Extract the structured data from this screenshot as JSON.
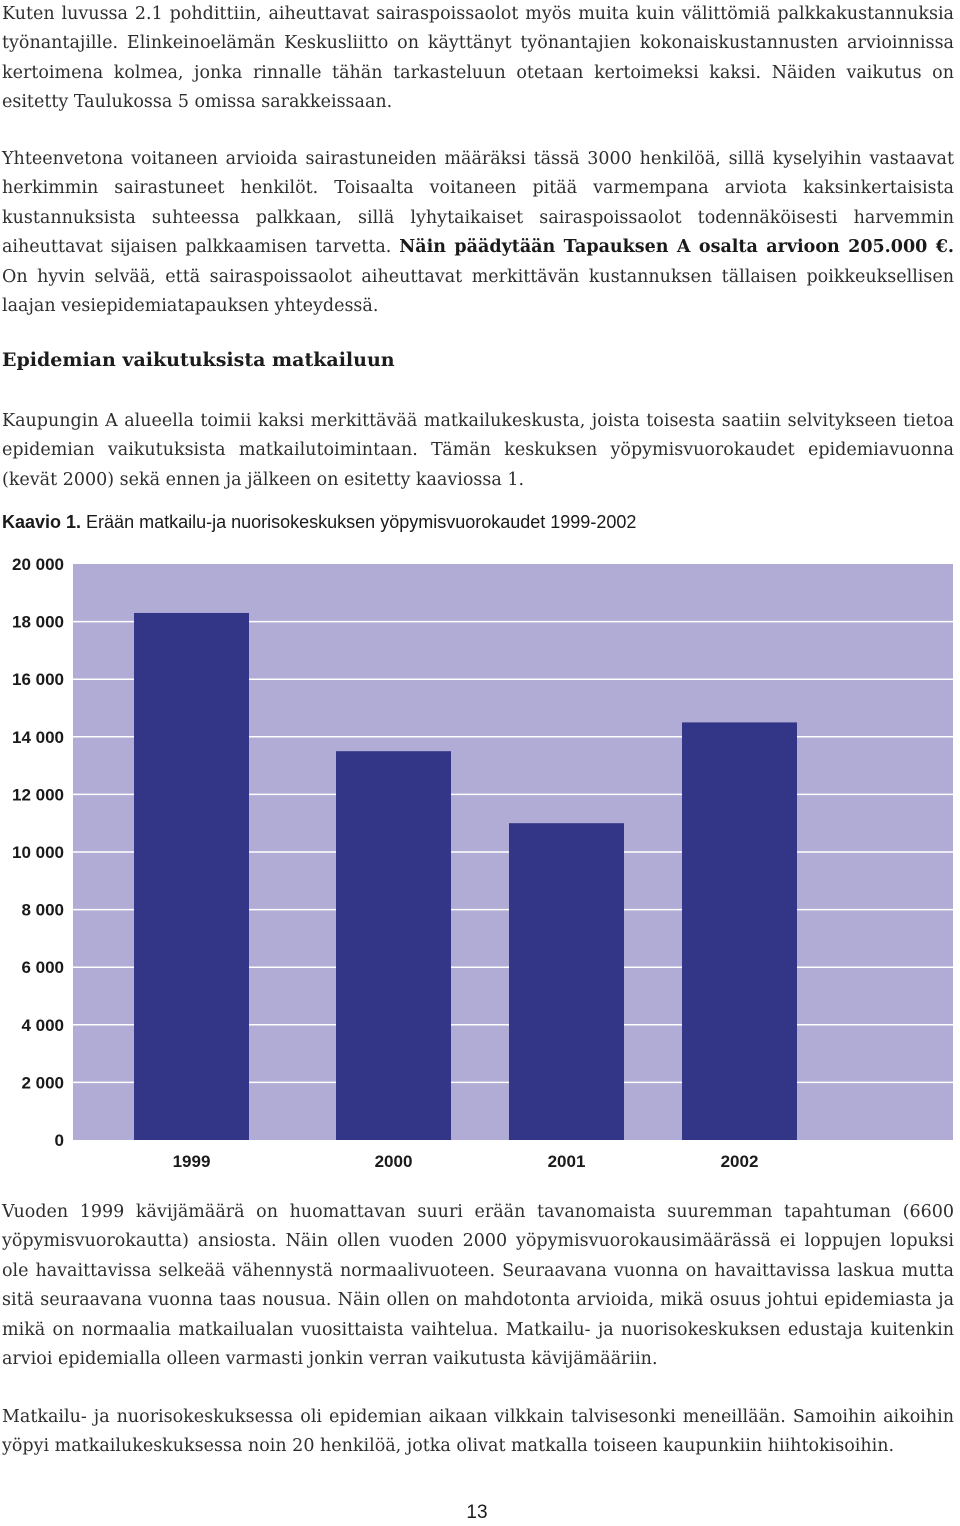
{
  "paragraphs": {
    "p1": "Kuten luvussa 2.1 pohdittiin, aiheuttavat sairaspoissaolot myös muita kuin välittömiä palkkakustannuksia työnantajille. Elinkeinoelämän Keskusliitto on käyttänyt työnantajien kokonaiskustannusten arvioinnissa kertoimena kolmea, jonka rinnalle tähän tarkasteluun otetaan kertoimeksi kaksi. Näiden vaikutus on esitetty Taulukossa 5 omissa sarakkeissaan.",
    "p2_start": "Yhteenvetona voitaneen arvioida sairastuneiden määräksi tässä 3000 henkilöä, sillä kyselyihin vastaavat herkimmin sairastuneet henkilöt. Toisaalta voitaneen pitää varmempana arviota kaksinkertaisista kustannuksista suhteessa palkkaan, sillä lyhytaikaiset sairaspoissaolot todennäköisesti harvemmin aiheuttavat sijaisen palkkaamisen tarvetta. ",
    "p2_bold": "Näin päädytään Tapauksen A osalta arvioon 205.000 €.",
    "p2_end": " On hyvin selvää, että sairaspoissaolot aiheuttavat merkittävän kustannuksen tällaisen poikkeuksellisen laajan vesiepidemiatapauksen yhteydessä.",
    "heading": "Epidemian vaikutuksista matkailuun",
    "p3": "Kaupungin A alueella toimii kaksi merkittävää matkailukeskusta, joista toisesta saatiin selvitykseen tietoa epidemian vaikutuksista matkailutoimintaan. Tämän keskuksen yöpymisvuorokaudet epidemiavuonna (kevät 2000) sekä ennen ja jälkeen on esitetty kaaviossa 1.",
    "caption_label": "Kaavio 1.",
    "caption_text": " Erään matkailu-ja nuorisokeskuksen yöpymisvuorokaudet 1999-2002",
    "p4": "Vuoden 1999 kävijämäärä on huomattavan suuri erään tavanomaista suuremman tapahtuman (6600 yöpymisvuorokautta) ansiosta. Näin ollen vuoden 2000 yöpymisvuorokausimäärässä ei loppujen lopuksi ole havaittavissa selkeää vähennystä normaalivuoteen. Seuraavana vuonna on havaittavissa laskua mutta sitä seuraavana vuonna taas nousua. Näin ollen on mahdotonta arvioida, mikä osuus johtui epidemiasta ja mikä on normaalia matkailualan vuosittaista vaihtelua. Matkailu- ja nuorisokeskuksen edustaja kuitenkin arvioi epidemialla olleen varmasti jonkin verran vaikutusta kävijämääriin.",
    "p5": "Matkailu- ja nuorisokeskuksessa oli epidemian aikaan vilkkain talvisesonki meneillään. Samoihin aikoihin yöpyi matkailukeskuksessa noin 20 henkilöä, jotka olivat matkalla toiseen kaupunkiin hiihtokisoihin."
  },
  "page_number": "13",
  "colors": {
    "plot_bg": "#b0acd6",
    "bar": "#333586",
    "grid": "#ffffff"
  },
  "chart_data": {
    "type": "bar",
    "categories": [
      "1999",
      "2000",
      "2001",
      "2002"
    ],
    "values": [
      18300,
      13500,
      11000,
      14500
    ],
    "ylim": [
      0,
      20000
    ],
    "yticks": [
      0,
      2000,
      4000,
      6000,
      8000,
      10000,
      12000,
      14000,
      16000,
      18000,
      20000
    ],
    "ytick_labels": [
      "0",
      "2 000",
      "4 000",
      "6 000",
      "8 000",
      "10 000",
      "12 000",
      "14 000",
      "16 000",
      "18 000",
      "20 000"
    ],
    "grid": true,
    "legend": "none"
  }
}
